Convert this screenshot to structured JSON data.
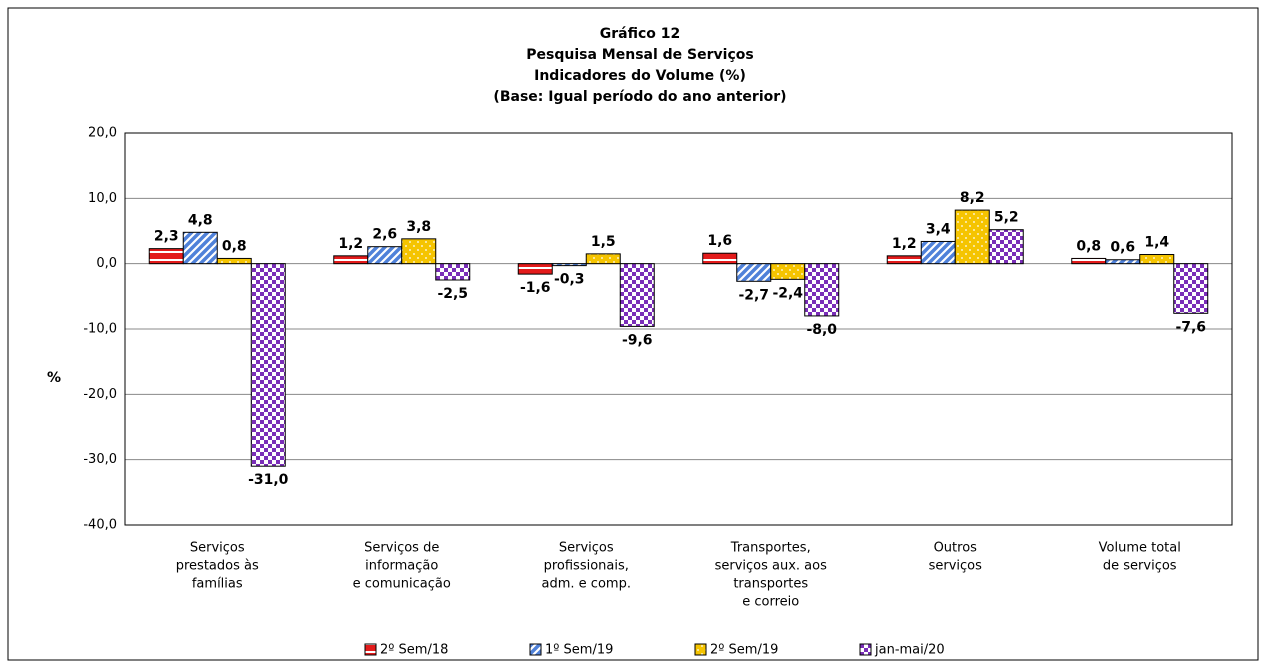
{
  "chart_data": {
    "type": "bar",
    "title": [
      "Gráfico 12",
      "Pesquisa Mensal de Serviços",
      "Indicadores do Volume (%)",
      "(Base: Igual período do ano anterior)"
    ],
    "y_label": "%",
    "categories": [
      [
        "Serviços",
        "prestados às",
        "famílias"
      ],
      [
        "Serviços de",
        "informação",
        "e comunicação"
      ],
      [
        "Serviços",
        "profissionais,",
        "adm. e comp."
      ],
      [
        "Transportes,",
        "serviços aux. aos",
        "transportes",
        "e correio"
      ],
      [
        "Outros",
        "serviços"
      ],
      [
        "Volume total",
        "de serviços"
      ]
    ],
    "series": [
      {
        "name": "2º Sem/18",
        "color": "#e31b1b",
        "values": [
          2.3,
          1.2,
          -1.6,
          1.6,
          1.2,
          0.8
        ],
        "value_labels": [
          "2,3",
          "1,2",
          "-1,6",
          "1,6",
          "1,2",
          "0,8"
        ]
      },
      {
        "name": "1º Sem/19",
        "color": "#4f81d9",
        "values": [
          4.8,
          2.6,
          -0.3,
          -2.7,
          3.4,
          0.6
        ],
        "value_labels": [
          "4,8",
          "2,6",
          "-0,3",
          "-2,7",
          "3,4",
          "0,6"
        ]
      },
      {
        "name": "2º Sem/19",
        "color": "#f5c400",
        "values": [
          0.8,
          3.8,
          1.5,
          -2.4,
          8.2,
          1.4
        ],
        "value_labels": [
          "0,8",
          "3,8",
          "1,5",
          "-2,4",
          "8,2",
          "1,4"
        ]
      },
      {
        "name": "jan-mai/20",
        "color": "#7a2eb8",
        "values": [
          -31.0,
          -2.5,
          -9.6,
          -8.0,
          5.2,
          -7.6
        ],
        "value_labels": [
          "-31,0",
          "-2,5",
          "-9,6",
          "-8,0",
          "5,2",
          "-7,6"
        ]
      }
    ],
    "ylim": [
      -40,
      20
    ],
    "yticks": [
      {
        "value": -40,
        "label": "-40,0"
      },
      {
        "value": -30,
        "label": "-30,0"
      },
      {
        "value": -20,
        "label": "-20,0"
      },
      {
        "value": -10,
        "label": "-10,0"
      },
      {
        "value": 0,
        "label": "0,0"
      },
      {
        "value": 10,
        "label": "10,0"
      },
      {
        "value": 20,
        "label": "20,0"
      }
    ],
    "grid": true,
    "legend": "bottom"
  }
}
